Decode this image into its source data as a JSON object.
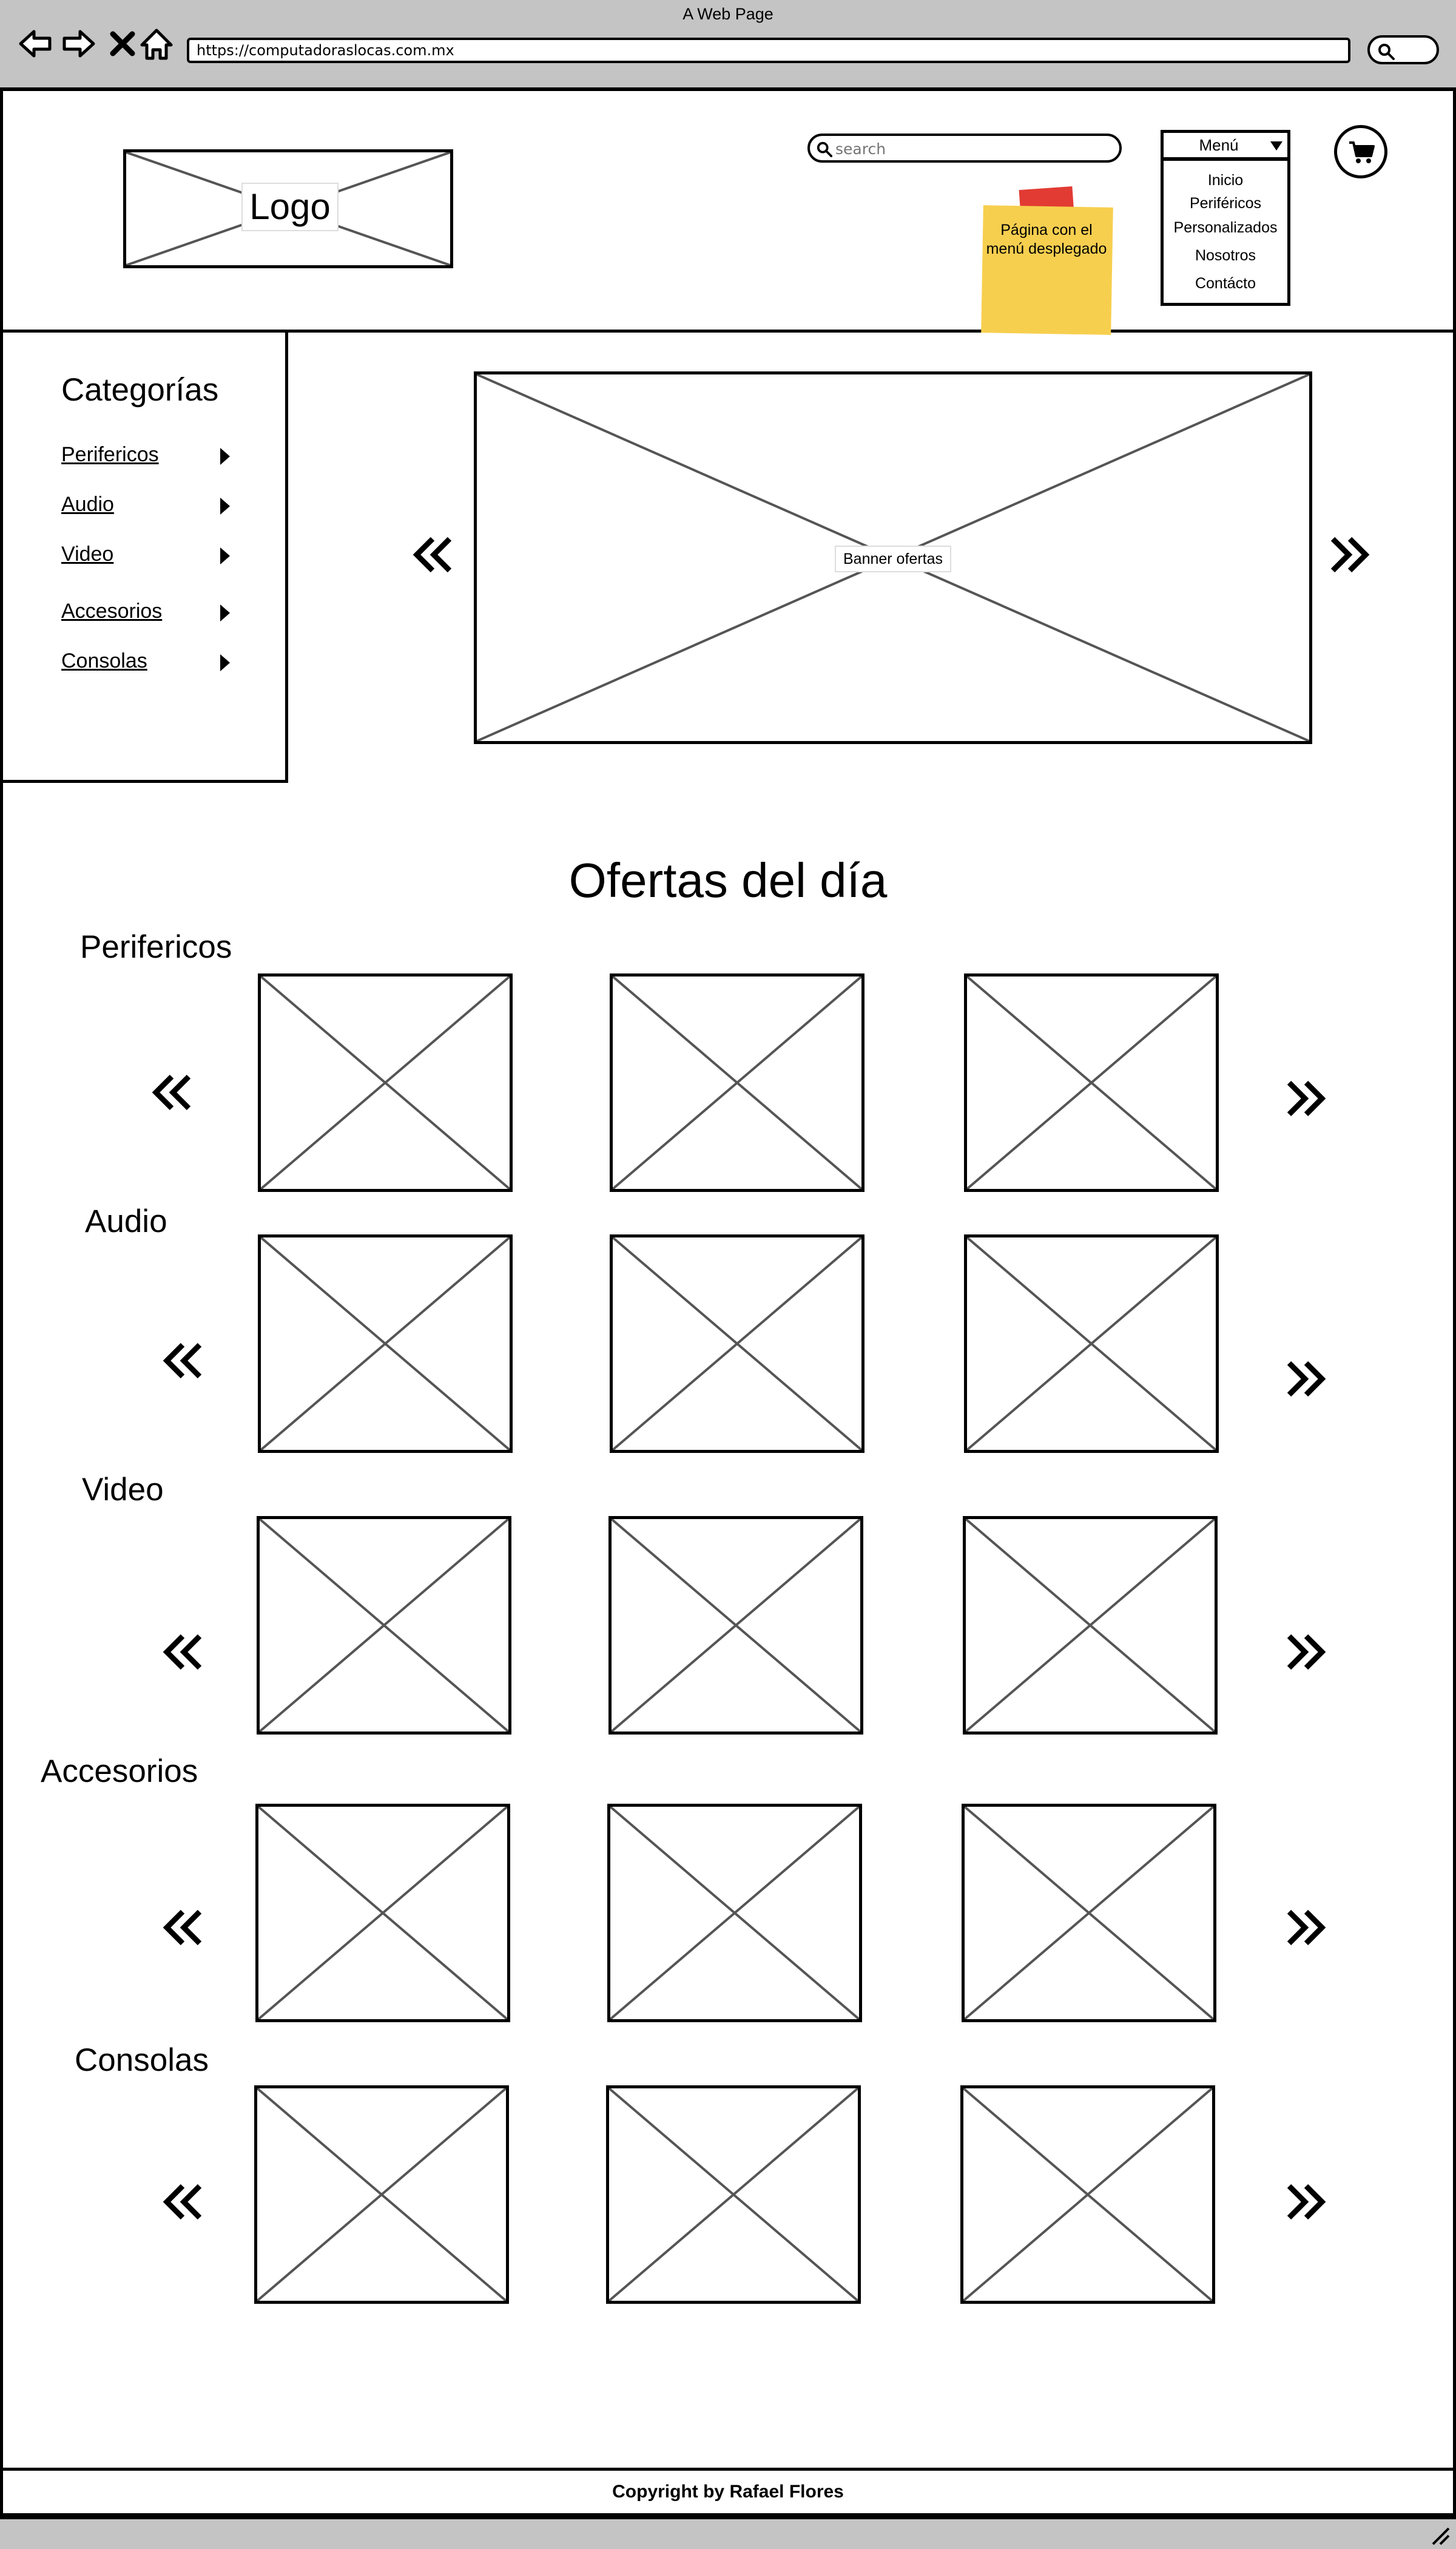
{
  "window": {
    "title": "A Web Page"
  },
  "browser": {
    "url": "https://computadoraslocas.com.mx"
  },
  "header": {
    "logo_label": "Logo",
    "search_placeholder": "search",
    "sticky_note": "Página con el menú desplegado",
    "menu": {
      "label": "Menú",
      "items": [
        "Inicio",
        "Periféricos",
        "Personalizados",
        "Nosotros",
        "Contácto"
      ]
    }
  },
  "sidebar": {
    "title": "Categorías",
    "items": [
      "Perifericos",
      "Audio",
      "Video",
      "Accesorios",
      "Consolas"
    ]
  },
  "banner": {
    "label": "Banner ofertas"
  },
  "offers": {
    "title": "Ofertas del día",
    "categories": [
      "Perifericos",
      "Audio",
      "Video",
      "Accesorios",
      "Consolas"
    ]
  },
  "footer": {
    "copyright": "Copyright by Rafael Flores"
  },
  "icons": [
    "back-icon",
    "forward-icon",
    "stop-icon",
    "home-icon",
    "search-icon",
    "cart-icon",
    "chevron-left-double-icon",
    "chevron-right-double-icon",
    "caret-right-icon",
    "dropdown-caret-icon"
  ]
}
